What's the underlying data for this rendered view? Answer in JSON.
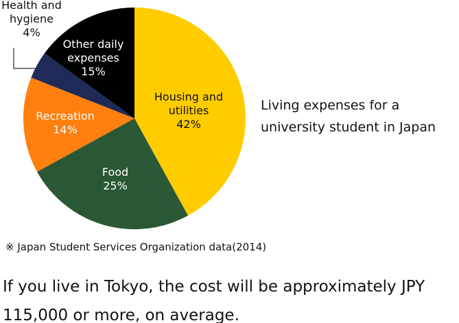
{
  "chart_data": {
    "type": "pie",
    "title": "Living expenses for a university student in Japan",
    "categories": [
      "Housing and utilities",
      "Food",
      "Recreation",
      "Health and hygiene",
      "Other daily expenses"
    ],
    "values": [
      42,
      25,
      14,
      4,
      15
    ],
    "value_labels": [
      "42%",
      "25%",
      "14%",
      "4%",
      "15%"
    ],
    "colors": [
      "#ffcc00",
      "#2b5834",
      "#ff7f0f",
      "#1e2a57",
      "#000000"
    ],
    "source": "※ Japan Student Services Organization data(2014)",
    "note": "If you live in Tokyo, the cost will be approximately JPY 115,000 or more, on average."
  }
}
